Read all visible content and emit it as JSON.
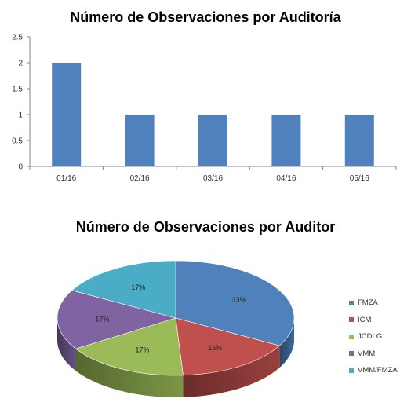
{
  "chart_data": [
    {
      "type": "bar",
      "title": "Número de Observaciones por Auditoría",
      "categories": [
        "01/16",
        "02/16",
        "03/16",
        "04/16",
        "05/16"
      ],
      "values": [
        2,
        1,
        1,
        1,
        1
      ],
      "ylim": [
        0,
        2.5
      ],
      "yticks": [
        "0",
        "0.5",
        "1",
        "1.5",
        "2",
        "2.5"
      ],
      "grid": false,
      "legend": "none",
      "color": "#4f81bd"
    },
    {
      "type": "pie",
      "title": "Número de Observaciones por Auditor",
      "labels": [
        "FMZA",
        "ICM",
        "JCDLG",
        "VMM",
        "VMM/FMZA"
      ],
      "values": [
        33,
        16,
        17,
        17,
        17
      ],
      "data_labels": [
        "33%",
        "16%",
        "17%",
        "17%",
        "17%"
      ],
      "colors": [
        "#4f81bd",
        "#c0504d",
        "#9bbb59",
        "#8064a2",
        "#4bacc6"
      ],
      "legend": "right"
    }
  ]
}
